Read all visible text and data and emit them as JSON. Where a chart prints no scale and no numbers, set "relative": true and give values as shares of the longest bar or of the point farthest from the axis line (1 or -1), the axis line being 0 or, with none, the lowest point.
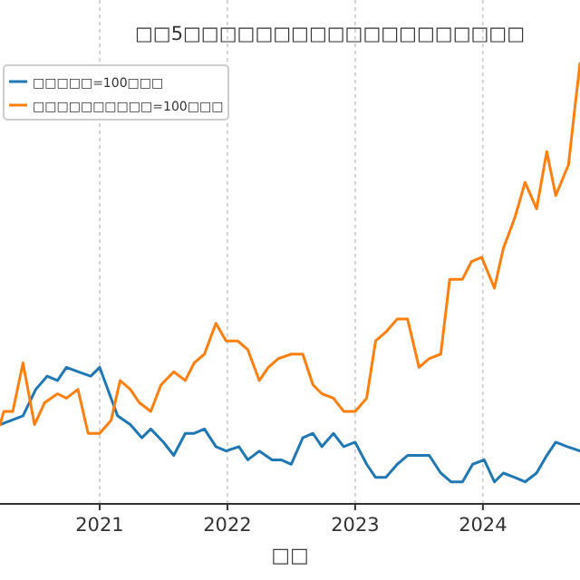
{
  "chart_data": {
    "type": "line",
    "title": "□□5□□□□□□□□□□□□□□□□□□□",
    "xlabel": "□□",
    "relative": true,
    "xlim": [
      2020.22,
      2024.76
    ],
    "xticks": [
      2021,
      2022,
      2023,
      2024
    ],
    "grid": "x",
    "legend": "top left",
    "line_style": "solid",
    "series": [
      {
        "name": "□□□□□=100□□□",
        "color": "#1f77b4",
        "x": [
          2020.22,
          2020.4,
          2020.5,
          2020.59,
          2020.67,
          2020.74,
          2020.83,
          2020.93,
          2021,
          2021.14,
          2021.24,
          2021.33,
          2021.4,
          2021.5,
          2021.58,
          2021.67,
          2021.74,
          2021.82,
          2021.91,
          2021.99,
          2022.09,
          2022.16,
          2022.25,
          2022.35,
          2022.42,
          2022.5,
          2022.59,
          2022.67,
          2022.74,
          2022.83,
          2022.91,
          2023,
          2023.09,
          2023.16,
          2023.24,
          2023.33,
          2023.41,
          2023.51,
          2023.58,
          2023.67,
          2023.75,
          2023.84,
          2023.92,
          2024.01,
          2024.09,
          2024.16,
          2024.25,
          2024.33,
          2024.42,
          2024.5,
          2024.57,
          2024.66,
          2024.76
        ],
        "values": [
          0.18,
          0.2,
          0.26,
          0.29,
          0.28,
          0.31,
          0.3,
          0.29,
          0.31,
          0.2,
          0.18,
          0.15,
          0.17,
          0.14,
          0.11,
          0.16,
          0.16,
          0.17,
          0.13,
          0.12,
          0.13,
          0.1,
          0.12,
          0.1,
          0.1,
          0.09,
          0.15,
          0.16,
          0.13,
          0.16,
          0.13,
          0.14,
          0.09,
          0.06,
          0.06,
          0.09,
          0.11,
          0.11,
          0.11,
          0.07,
          0.05,
          0.05,
          0.09,
          0.1,
          0.05,
          0.07,
          0.06,
          0.05,
          0.07,
          0.11,
          0.14,
          0.13,
          0.12
        ]
      },
      {
        "name": "□□□□□□□□□□=100□□□",
        "color": "#ff7f0e",
        "x": [
          2020.22,
          2020.25,
          2020.32,
          2020.4,
          2020.49,
          2020.57,
          2020.67,
          2020.74,
          2020.83,
          2020.91,
          2021,
          2021.09,
          2021.16,
          2021.24,
          2021.31,
          2021.4,
          2021.48,
          2021.58,
          2021.67,
          2021.74,
          2021.82,
          2021.91,
          2021.99,
          2022.08,
          2022.16,
          2022.25,
          2022.32,
          2022.4,
          2022.5,
          2022.59,
          2022.67,
          2022.74,
          2022.83,
          2022.91,
          2023,
          2023.09,
          2023.16,
          2023.24,
          2023.33,
          2023.41,
          2023.5,
          2023.58,
          2023.67,
          2023.74,
          2023.84,
          2023.91,
          2023.99,
          2024.09,
          2024.16,
          2024.25,
          2024.33,
          2024.42,
          2024.5,
          2024.57,
          2024.67,
          2024.72,
          2024.76
        ],
        "values": [
          0.18,
          0.21,
          0.21,
          0.32,
          0.18,
          0.23,
          0.25,
          0.24,
          0.26,
          0.16,
          0.16,
          0.19,
          0.28,
          0.26,
          0.23,
          0.21,
          0.27,
          0.3,
          0.28,
          0.32,
          0.34,
          0.41,
          0.37,
          0.37,
          0.35,
          0.28,
          0.31,
          0.33,
          0.34,
          0.34,
          0.27,
          0.25,
          0.24,
          0.21,
          0.21,
          0.24,
          0.37,
          0.39,
          0.42,
          0.42,
          0.31,
          0.33,
          0.34,
          0.51,
          0.51,
          0.55,
          0.56,
          0.49,
          0.58,
          0.65,
          0.73,
          0.67,
          0.8,
          0.7,
          0.77,
          0.9,
          1
        ]
      }
    ]
  }
}
